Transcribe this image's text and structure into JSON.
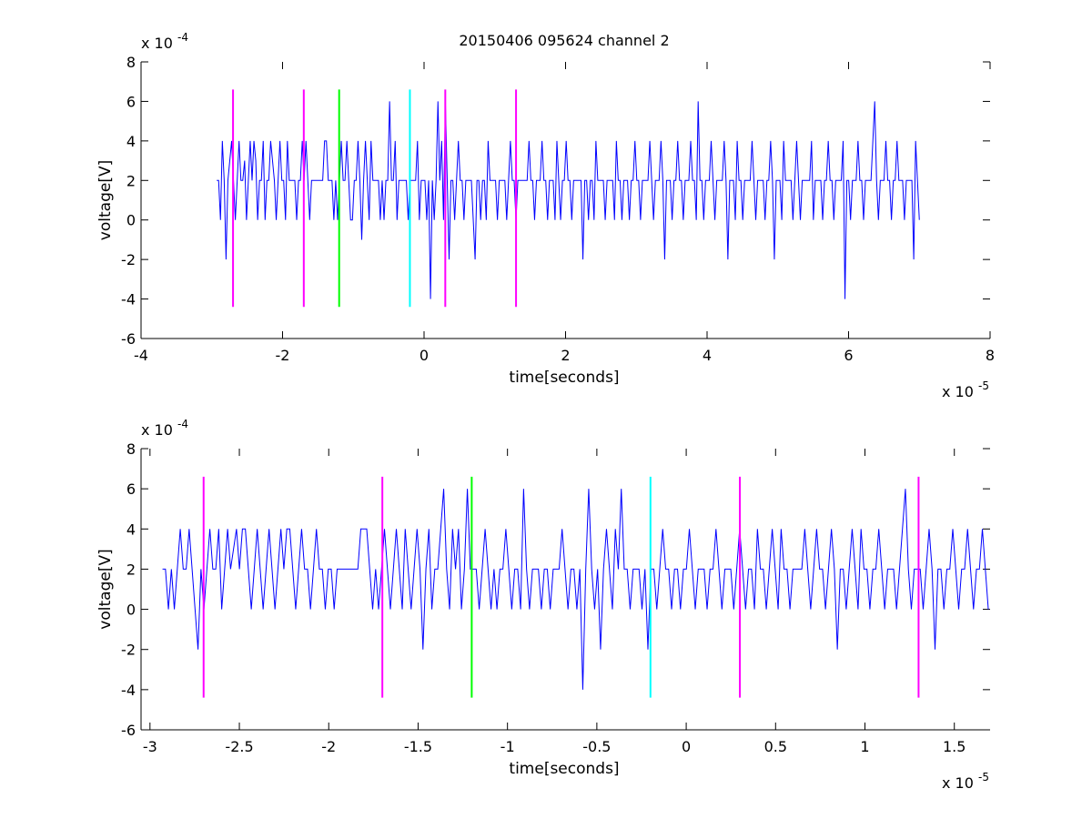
{
  "figure": {
    "title": "20150406 095624 channel 2"
  },
  "chart_data": [
    {
      "type": "line",
      "title": "20150406 095624 channel 2",
      "xlabel": "time[seconds]",
      "ylabel": "voltage[V]",
      "xlim": [
        -4,
        8
      ],
      "ylim": [
        -6,
        8
      ],
      "x_exponent_label": "x 10",
      "x_exponent": "-5",
      "y_exponent_label": "x 10",
      "y_exponent": "-4",
      "xticks": [
        "-4",
        "-2",
        "0",
        "2",
        "4",
        "6",
        "8"
      ],
      "yticks": [
        "-6",
        "-4",
        "-2",
        "0",
        "2",
        "4",
        "6",
        "8"
      ],
      "grid": false,
      "series": [
        {
          "color": "#0000ff",
          "x_range": [
            -2.93,
            7.0
          ],
          "values": [
            2,
            2,
            0,
            4,
            2,
            -2,
            2,
            3,
            4,
            2,
            0,
            2,
            4,
            2,
            2,
            3,
            0,
            2,
            4,
            2,
            4,
            3,
            0,
            2,
            2,
            4,
            0,
            2,
            2,
            4,
            3,
            2,
            0,
            2,
            4,
            2,
            2,
            0,
            4,
            2,
            2,
            2,
            2,
            0,
            2,
            2,
            4,
            2,
            4,
            2,
            0,
            2,
            2,
            2,
            2,
            2,
            2,
            2,
            4,
            4,
            2,
            2,
            2,
            0,
            2,
            0,
            2,
            4,
            2,
            2,
            4,
            2,
            0,
            0,
            2,
            2,
            4,
            2,
            -1,
            2,
            4,
            2,
            0,
            4,
            2,
            2,
            2,
            2,
            0,
            2,
            0,
            2,
            2,
            6,
            2,
            2,
            4,
            0,
            2,
            2,
            2,
            2,
            2,
            0,
            2,
            2,
            2,
            2,
            4,
            0,
            2,
            2,
            2,
            0,
            2,
            -4,
            2,
            0,
            2,
            6,
            2,
            4,
            0,
            6,
            2,
            -2,
            2,
            2,
            0,
            2,
            4,
            2,
            2,
            0,
            2,
            2,
            2,
            2,
            0,
            -2,
            2,
            2,
            0,
            2,
            2,
            0,
            4,
            2,
            2,
            2,
            2,
            0,
            2,
            2,
            2,
            2,
            0,
            2,
            4,
            2,
            2,
            0,
            2,
            2,
            2,
            2,
            2,
            2,
            4,
            2,
            2,
            0,
            2,
            2,
            2,
            4,
            2,
            2,
            0,
            2,
            2,
            2,
            0,
            4,
            2,
            0,
            2,
            2,
            4,
            2,
            2,
            0,
            2,
            2,
            2,
            2,
            2,
            -2,
            2,
            2,
            0,
            2,
            2,
            0,
            4,
            2,
            2,
            2,
            2,
            0,
            2,
            2,
            2,
            2,
            0,
            4,
            2,
            2,
            0,
            2,
            2,
            2,
            0,
            2,
            2,
            4,
            2,
            2,
            0,
            2,
            2,
            2,
            2,
            4,
            2,
            0,
            2,
            2,
            2,
            4,
            2,
            -2,
            2,
            2,
            2,
            0,
            2,
            2,
            4,
            2,
            2,
            0,
            2,
            2,
            2,
            4,
            2,
            2,
            0,
            6,
            2,
            2,
            0,
            2,
            2,
            2,
            4,
            2,
            0,
            2,
            2,
            2,
            2,
            4,
            2,
            -2,
            2,
            2,
            2,
            0,
            4,
            2,
            2,
            0,
            2,
            2,
            2,
            2,
            4,
            2,
            0,
            2,
            2,
            2,
            2,
            0,
            2,
            2,
            4,
            2,
            -2,
            2,
            2,
            2,
            0,
            4,
            2,
            2,
            2,
            2,
            0,
            2,
            4,
            2,
            0,
            2,
            2,
            2,
            2,
            2,
            4,
            0,
            2,
            2,
            2,
            2,
            0,
            2,
            2,
            4,
            2,
            2,
            0,
            2,
            2,
            2,
            2,
            4,
            -4,
            2,
            2,
            0,
            2,
            2,
            2,
            4,
            2,
            2,
            0,
            2,
            2,
            2,
            2,
            4,
            6,
            2,
            0,
            2,
            2,
            2,
            4,
            2,
            2,
            0,
            2,
            2,
            4,
            2,
            2,
            2,
            0,
            2,
            2,
            2,
            2,
            -2,
            4,
            2,
            0
          ]
        }
      ],
      "markers": [
        {
          "x": -2.7,
          "color": "#ff00ff",
          "y_range": [
            -4.4,
            6.6
          ]
        },
        {
          "x": -1.7,
          "color": "#ff00ff",
          "y_range": [
            -4.4,
            6.6
          ]
        },
        {
          "x": -1.2,
          "color": "#00ff00",
          "y_range": [
            -4.4,
            6.6
          ]
        },
        {
          "x": -0.2,
          "color": "#00ffff",
          "y_range": [
            -4.4,
            6.6
          ]
        },
        {
          "x": 0.3,
          "color": "#ff00ff",
          "y_range": [
            -4.4,
            6.6
          ]
        },
        {
          "x": 1.3,
          "color": "#ff00ff",
          "y_range": [
            -4.4,
            6.6
          ]
        }
      ]
    },
    {
      "type": "line",
      "title": "",
      "xlabel": "time[seconds]",
      "ylabel": "voltage[V]",
      "xlim": [
        -3.05,
        1.7
      ],
      "ylim": [
        -6,
        8
      ],
      "x_exponent_label": "x 10",
      "x_exponent": "-5",
      "y_exponent_label": "x 10",
      "y_exponent": "-4",
      "xticks": [
        "-3",
        "-2.5",
        "-2",
        "-1.5",
        "-1",
        "-0.5",
        "0",
        "0.5",
        "1",
        "1.5"
      ],
      "yticks": [
        "-6",
        "-4",
        "-2",
        "0",
        "2",
        "4",
        "6",
        "8"
      ],
      "grid": false,
      "series": [
        {
          "color": "#0000ff",
          "x_range": [
            -2.93,
            1.69
          ],
          "values": [
            2,
            2,
            0,
            2,
            0,
            2,
            4,
            2,
            2,
            4,
            2,
            0,
            -2,
            2,
            0,
            2,
            4,
            2,
            2,
            4,
            0,
            2,
            4,
            2,
            3,
            4,
            2,
            4,
            4,
            2,
            0,
            2,
            4,
            2,
            0,
            2,
            4,
            2,
            0,
            2,
            4,
            2,
            4,
            4,
            2,
            0,
            2,
            4,
            2,
            2,
            0,
            2,
            4,
            2,
            2,
            0,
            2,
            2,
            0,
            2,
            2,
            2,
            2,
            2,
            2,
            2,
            2,
            4,
            4,
            4,
            2,
            0,
            2,
            0,
            2,
            4,
            2,
            0,
            2,
            4,
            2,
            0,
            4,
            2,
            0,
            2,
            4,
            2,
            -2,
            2,
            4,
            0,
            2,
            2,
            4,
            6,
            2,
            0,
            4,
            2,
            4,
            0,
            2,
            6,
            2,
            2,
            2,
            0,
            2,
            4,
            2,
            0,
            2,
            0,
            2,
            2,
            4,
            2,
            0,
            2,
            2,
            0,
            6,
            2,
            0,
            2,
            2,
            2,
            0,
            2,
            2,
            0,
            2,
            2,
            2,
            4,
            2,
            0,
            2,
            2,
            0,
            2,
            -4,
            2,
            6,
            2,
            0,
            2,
            -2,
            2,
            4,
            2,
            0,
            4,
            2,
            6,
            2,
            2,
            0,
            2,
            2,
            2,
            0,
            2,
            -2,
            2,
            2,
            0,
            2,
            4,
            2,
            2,
            0,
            2,
            2,
            0,
            2,
            2,
            4,
            2,
            0,
            2,
            2,
            2,
            0,
            2,
            2,
            4,
            2,
            0,
            2,
            2,
            2,
            0,
            2,
            4,
            2,
            0,
            2,
            2,
            0,
            4,
            2,
            2,
            0,
            2,
            4,
            2,
            0,
            4,
            2,
            2,
            0,
            2,
            2,
            2,
            2,
            4,
            2,
            0,
            2,
            4,
            2,
            2,
            0,
            2,
            4,
            2,
            -2,
            2,
            2,
            0,
            2,
            4,
            2,
            0,
            4,
            2,
            2,
            0,
            2,
            2,
            4,
            2,
            0,
            2,
            2,
            2,
            0,
            2,
            4,
            6,
            2,
            0,
            2,
            2,
            2,
            0,
            2,
            4,
            2,
            -2,
            2,
            2,
            0,
            2,
            2,
            4,
            2,
            0,
            2,
            2,
            4,
            2,
            0,
            2,
            2,
            4,
            2,
            0
          ]
        }
      ],
      "markers": [
        {
          "x": -2.7,
          "color": "#ff00ff",
          "y_range": [
            -4.4,
            6.6
          ]
        },
        {
          "x": -1.7,
          "color": "#ff00ff",
          "y_range": [
            -4.4,
            6.6
          ]
        },
        {
          "x": -1.2,
          "color": "#00ff00",
          "y_range": [
            -4.4,
            6.6
          ]
        },
        {
          "x": -0.2,
          "color": "#00ffff",
          "y_range": [
            -4.4,
            6.6
          ]
        },
        {
          "x": 0.3,
          "color": "#ff00ff",
          "y_range": [
            -4.4,
            6.6
          ]
        },
        {
          "x": 1.3,
          "color": "#ff00ff",
          "y_range": [
            -4.4,
            6.6
          ]
        }
      ]
    }
  ]
}
